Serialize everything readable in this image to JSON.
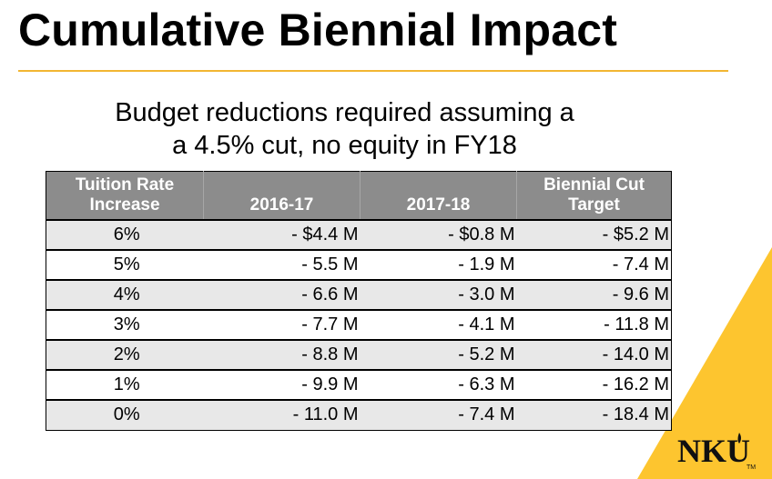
{
  "title": "Cumulative Biennial Impact",
  "subtitle": {
    "line1": "Budget reductions required assuming a",
    "line2": "a 4.5% cut, no equity in FY18"
  },
  "table": {
    "headers": {
      "col1_line1": "Tuition Rate",
      "col1_line2": "Increase",
      "col2": "2016-17",
      "col3": "2017-18",
      "col4_line1": "Biennial Cut",
      "col4_line2": "Target"
    },
    "rows": [
      {
        "rate": "6%",
        "y2016": "- $4.4 M",
        "y2017": "- $0.8 M",
        "target": "- $5.2 M"
      },
      {
        "rate": "5%",
        "y2016": "- 5.5 M",
        "y2017": "- 1.9 M",
        "target": "- 7.4 M"
      },
      {
        "rate": "4%",
        "y2016": "- 6.6 M",
        "y2017": "- 3.0 M",
        "target": "- 9.6 M"
      },
      {
        "rate": "3%",
        "y2016": "- 7.7 M",
        "y2017": "- 4.1 M",
        "target": "- 11.8 M"
      },
      {
        "rate": "2%",
        "y2016": "- 8.8 M",
        "y2017": "- 5.2 M",
        "target": "- 14.0 M"
      },
      {
        "rate": "1%",
        "y2016": "- 9.9 M",
        "y2017": "- 6.3 M",
        "target": "- 16.2 M"
      },
      {
        "rate": "0%",
        "y2016": "- 11.0 M",
        "y2017": "- 7.4 M",
        "target": "- 18.4 M"
      }
    ]
  },
  "logo": {
    "text": "NKU",
    "mark": "TM"
  },
  "colors": {
    "accent": "#f2b632",
    "wedge": "#fdc52f",
    "header_bg": "#8c8c8c",
    "row_alt_bg": "#e8e8e8"
  }
}
